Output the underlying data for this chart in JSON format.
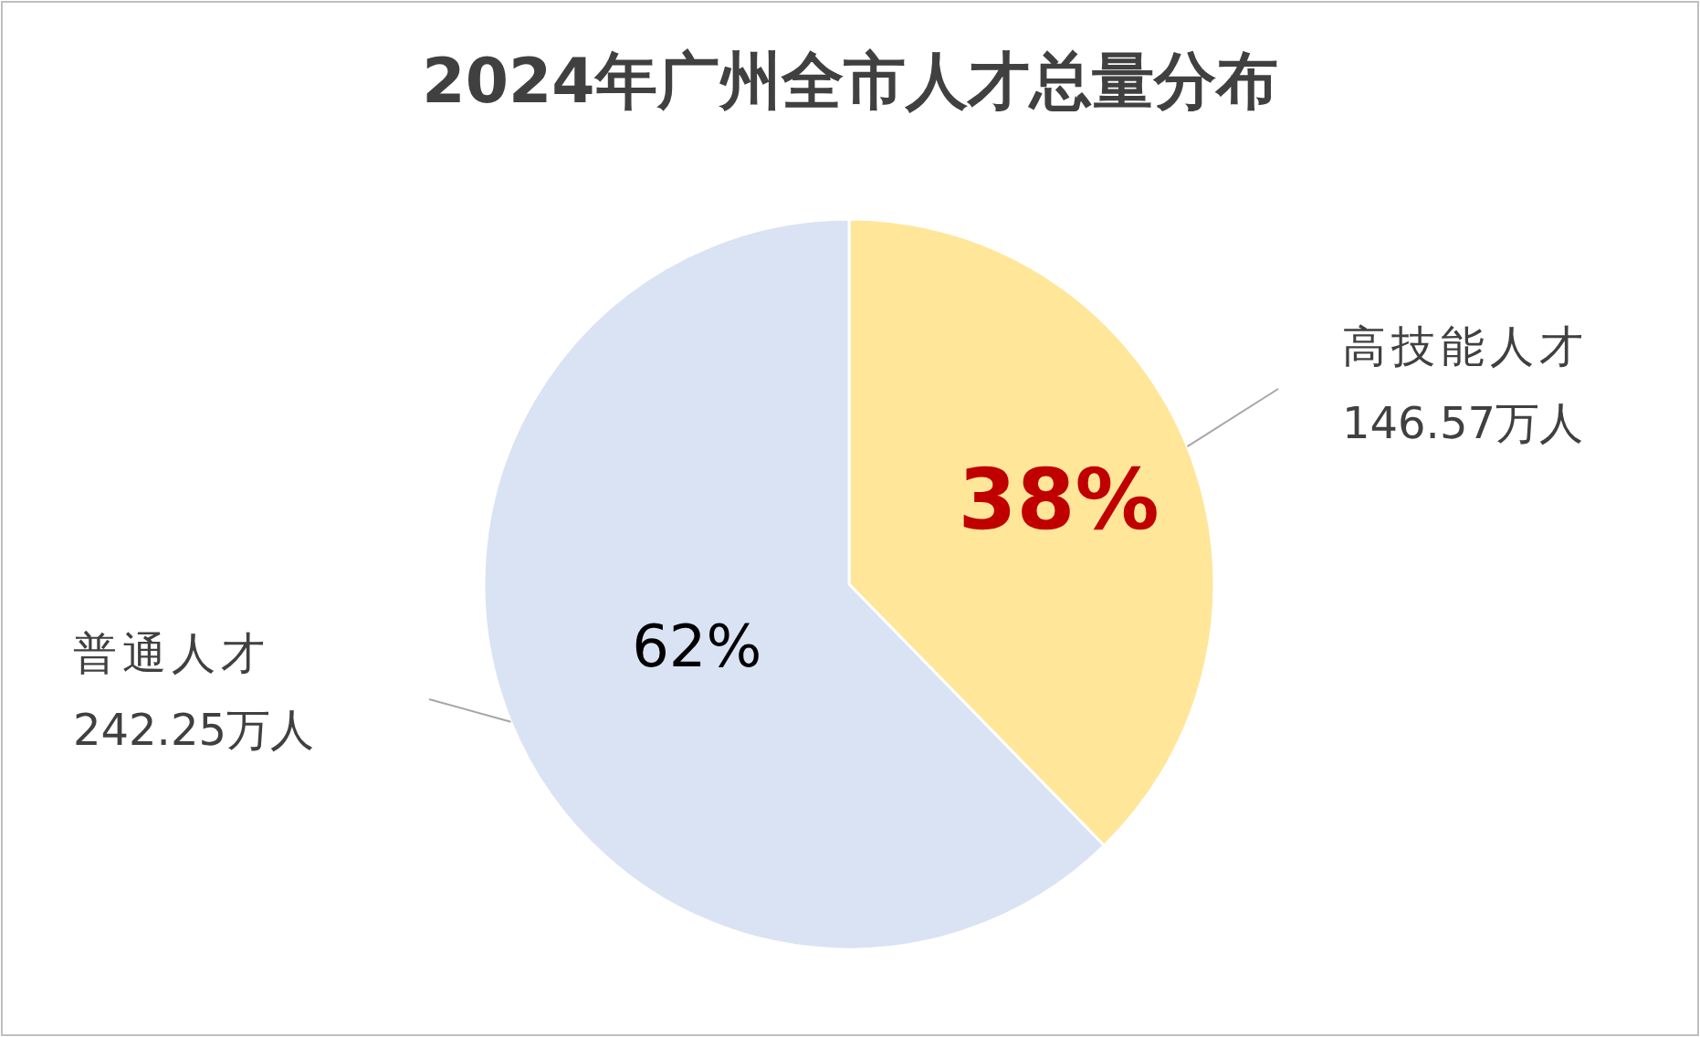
{
  "chart_data": {
    "type": "pie",
    "title": "2024年广州全市人才总量分布",
    "categories": [
      "高技能人才",
      "普通人才"
    ],
    "values": [
      146.57,
      242.25
    ],
    "colors": [
      "#ffe699",
      "#dae3f3"
    ],
    "value_labels": [
      "146.57万人",
      "242.25万人"
    ],
    "annotations": [
      "38%",
      "62%"
    ]
  }
}
